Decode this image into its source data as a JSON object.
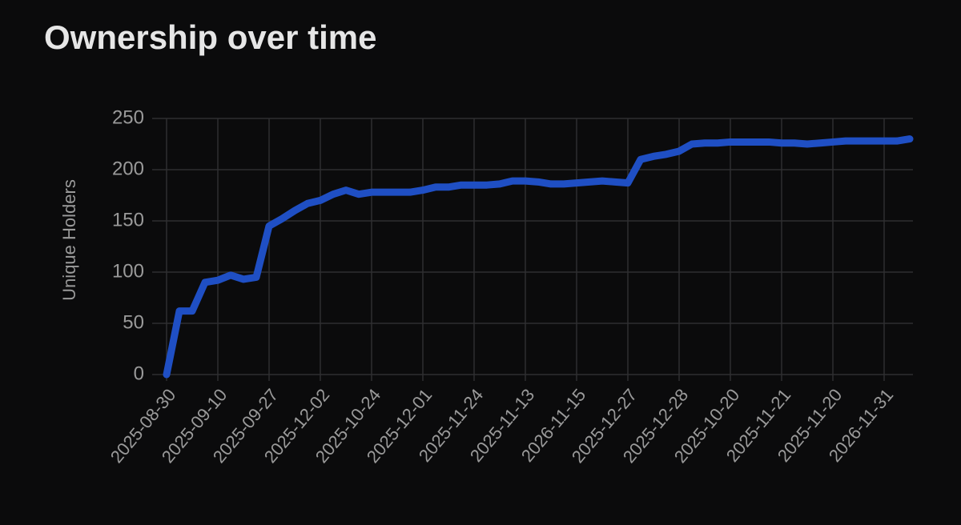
{
  "chart_data": {
    "type": "line",
    "title": "Ownership over time",
    "y_label": "Unique Holders",
    "categories": [
      "2025-08-30",
      null,
      null,
      null,
      "2025-09-10",
      null,
      null,
      null,
      "2025-09-27",
      null,
      null,
      null,
      "2025-12-02",
      null,
      null,
      null,
      "2025-10-24",
      null,
      null,
      null,
      "2025-12-01",
      null,
      null,
      null,
      "2025-11-24",
      null,
      null,
      null,
      "2025-11-13",
      null,
      null,
      null,
      "2026-11-15",
      null,
      null,
      null,
      "2025-12-27",
      null,
      null,
      null,
      "2025-12-28",
      null,
      null,
      null,
      "2025-10-20",
      null,
      null,
      null,
      "2025-11-21",
      null,
      null,
      null,
      "2025-11-20",
      null,
      null,
      null,
      "2026-11-31",
      null,
      null
    ],
    "series": [
      {
        "name": "Unique Holders",
        "color": "#1f4fc4",
        "values": [
          0,
          62,
          62,
          90,
          92,
          97,
          93,
          95,
          145,
          152,
          160,
          167,
          170,
          176,
          180,
          176,
          178,
          178,
          178,
          178,
          180,
          183,
          183,
          185,
          185,
          185,
          186,
          189,
          189,
          188,
          186,
          186,
          187,
          188,
          189,
          188,
          187,
          210,
          213,
          215,
          218,
          225,
          226,
          226,
          227,
          227,
          227,
          227,
          226,
          226,
          225,
          226,
          227,
          228,
          228,
          228,
          228,
          228,
          230
        ]
      }
    ],
    "ylim": [
      0,
      250
    ],
    "yticks": [
      0,
      50,
      100,
      150,
      200,
      250
    ],
    "grid": true
  }
}
